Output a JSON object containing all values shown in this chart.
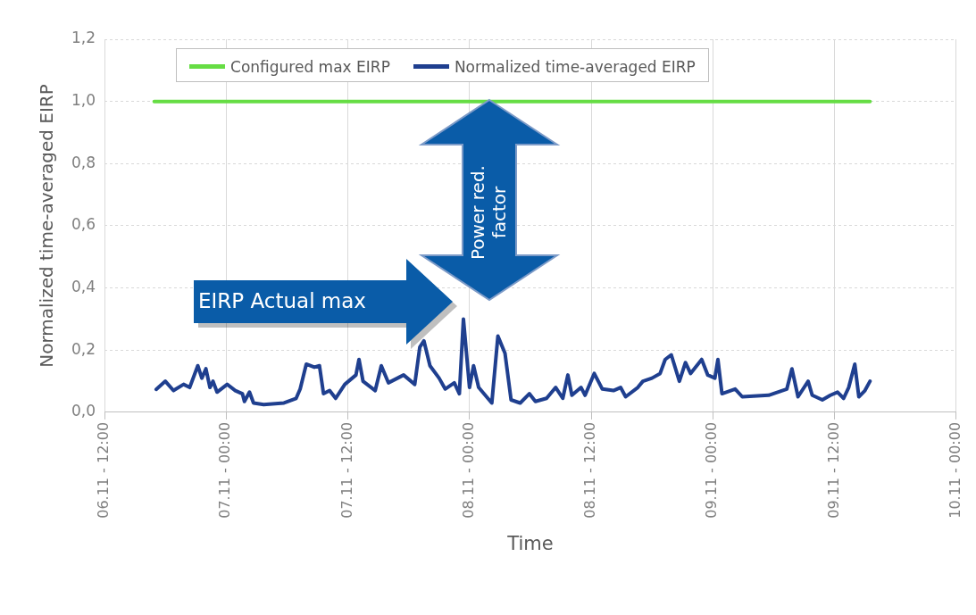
{
  "chart_data": {
    "type": "line",
    "xlabel": "Time",
    "ylabel": "Normalized time-averaged EIRP",
    "xlim": [
      "--11-06T12:00",
      "--11-10T00:00"
    ],
    "xticks": [
      {
        "value": "--11-06T12:00",
        "label": "06.11 - 12:00"
      },
      {
        "value": "--11-07T00:00",
        "label": "07.11 - 00:00"
      },
      {
        "value": "--11-07T12:00",
        "label": "07.11 - 12:00"
      },
      {
        "value": "--11-08T00:00",
        "label": "08.11 - 00:00"
      },
      {
        "value": "--11-08T12:00",
        "label": "08.11 - 12:00"
      },
      {
        "value": "--11-09T00:00",
        "label": "09.11 - 00:00"
      },
      {
        "value": "--11-09T12:00",
        "label": "09.11 - 12:00"
      },
      {
        "value": "--11-10T00:00",
        "label": "10.11 - 00:00"
      }
    ],
    "ylim": [
      0,
      1.2
    ],
    "yticks": [
      {
        "value": 0,
        "label": "0,0"
      },
      {
        "value": 0.2,
        "label": "0,2"
      },
      {
        "value": 0.4,
        "label": "0,4"
      },
      {
        "value": 0.6,
        "label": "0,6"
      },
      {
        "value": 0.8,
        "label": "0,8"
      },
      {
        "value": 1.0,
        "label": "1,0"
      },
      {
        "value": 1.2,
        "label": "1,2"
      }
    ],
    "grid": true,
    "legend": "top",
    "marker": "none",
    "line_style": "solid",
    "series": [
      {
        "name": "Configured max EIRP",
        "color": "#66dd44",
        "x": [
          "--11-06T16:54",
          "--11-09T15:30"
        ],
        "values": [
          1.0,
          1.0
        ]
      },
      {
        "name": "Normalized time-averaged EIRP",
        "color": "#1f3f8f",
        "x": [
          "--11-06T17:06",
          "--11-06T18:00",
          "--11-06T18:48",
          "--11-06T19:48",
          "--11-06T20:24",
          "--11-06T21:12",
          "--11-06T21:36",
          "--11-06T22:00",
          "--11-06T22:24",
          "--11-06T22:42",
          "--11-06T23:06",
          "--11-07T00:06",
          "--11-07T00:54",
          "--11-07T01:36",
          "--11-07T01:48",
          "--11-07T02:18",
          "--11-07T02:42",
          "--11-07T03:42",
          "--11-07T05:42",
          "--11-07T06:54",
          "--11-07T07:18",
          "--11-07T07:54",
          "--11-07T08:42",
          "--11-07T09:12",
          "--11-07T09:36",
          "--11-07T10:12",
          "--11-07T10:48",
          "--11-07T11:42",
          "--11-07T12:48",
          "--11-07T13:06",
          "--11-07T13:30",
          "--11-07T14:42",
          "--11-07T15:18",
          "--11-07T16:00",
          "--11-07T16:54",
          "--11-07T17:30",
          "--11-07T18:36",
          "--11-07T19:06",
          "--11-07T19:30",
          "--11-07T20:06",
          "--11-07T21:00",
          "--11-07T21:36",
          "--11-07T22:30",
          "--11-07T23:00",
          "--11-07T23:24",
          "--11-08T00:00",
          "--11-08T00:24",
          "--11-08T00:54",
          "--11-08T02:12",
          "--11-08T02:48",
          "--11-08T03:30",
          "--11-08T04:06",
          "--11-08T05:00",
          "--11-08T05:54",
          "--11-08T06:30",
          "--11-08T07:36",
          "--11-08T08:30",
          "--11-08T09:12",
          "--11-08T09:42",
          "--11-08T10:06",
          "--11-08T11:00",
          "--11-08T11:24",
          "--11-08T12:18",
          "--11-08T13:06",
          "--11-08T14:12",
          "--11-08T14:54",
          "--11-08T15:24",
          "--11-08T16:36",
          "--11-08T17:06",
          "--11-08T18:00",
          "--11-08T18:48",
          "--11-08T19:18",
          "--11-08T19:54",
          "--11-08T20:42",
          "--11-08T21:18",
          "--11-08T21:48",
          "--11-08T22:54",
          "--11-08T23:30",
          "--11-09T00:12",
          "--11-09T00:30",
          "--11-09T00:54",
          "--11-09T02:12",
          "--11-09T02:54",
          "--11-09T05:30",
          "--11-09T07:18",
          "--11-09T07:48",
          "--11-09T08:24",
          "--11-09T09:24",
          "--11-09T09:48",
          "--11-09T10:48",
          "--11-09T11:36",
          "--11-09T12:18",
          "--11-09T12:54",
          "--11-09T13:24",
          "--11-09T14:00",
          "--11-09T14:24",
          "--11-09T15:00",
          "--11-09T15:30"
        ],
        "values": [
          0.074,
          0.1,
          0.07,
          0.09,
          0.08,
          0.15,
          0.11,
          0.14,
          0.08,
          0.1,
          0.065,
          0.09,
          0.07,
          0.06,
          0.035,
          0.065,
          0.03,
          0.025,
          0.03,
          0.045,
          0.075,
          0.155,
          0.145,
          0.15,
          0.06,
          0.07,
          0.045,
          0.09,
          0.12,
          0.17,
          0.1,
          0.07,
          0.15,
          0.095,
          0.11,
          0.12,
          0.09,
          0.21,
          0.23,
          0.15,
          0.11,
          0.075,
          0.095,
          0.06,
          0.3,
          0.08,
          0.15,
          0.08,
          0.03,
          0.245,
          0.19,
          0.04,
          0.03,
          0.06,
          0.035,
          0.045,
          0.08,
          0.045,
          0.12,
          0.055,
          0.08,
          0.055,
          0.125,
          0.075,
          0.07,
          0.08,
          0.05,
          0.08,
          0.1,
          0.11,
          0.125,
          0.17,
          0.185,
          0.1,
          0.16,
          0.125,
          0.17,
          0.12,
          0.11,
          0.17,
          0.06,
          0.075,
          0.05,
          0.055,
          0.075,
          0.14,
          0.05,
          0.1,
          0.055,
          0.04,
          0.055,
          0.065,
          0.045,
          0.08,
          0.155,
          0.05,
          0.07,
          0.1
        ]
      }
    ],
    "annotations": [
      "EIRP Actual max",
      "Power red. factor"
    ]
  }
}
